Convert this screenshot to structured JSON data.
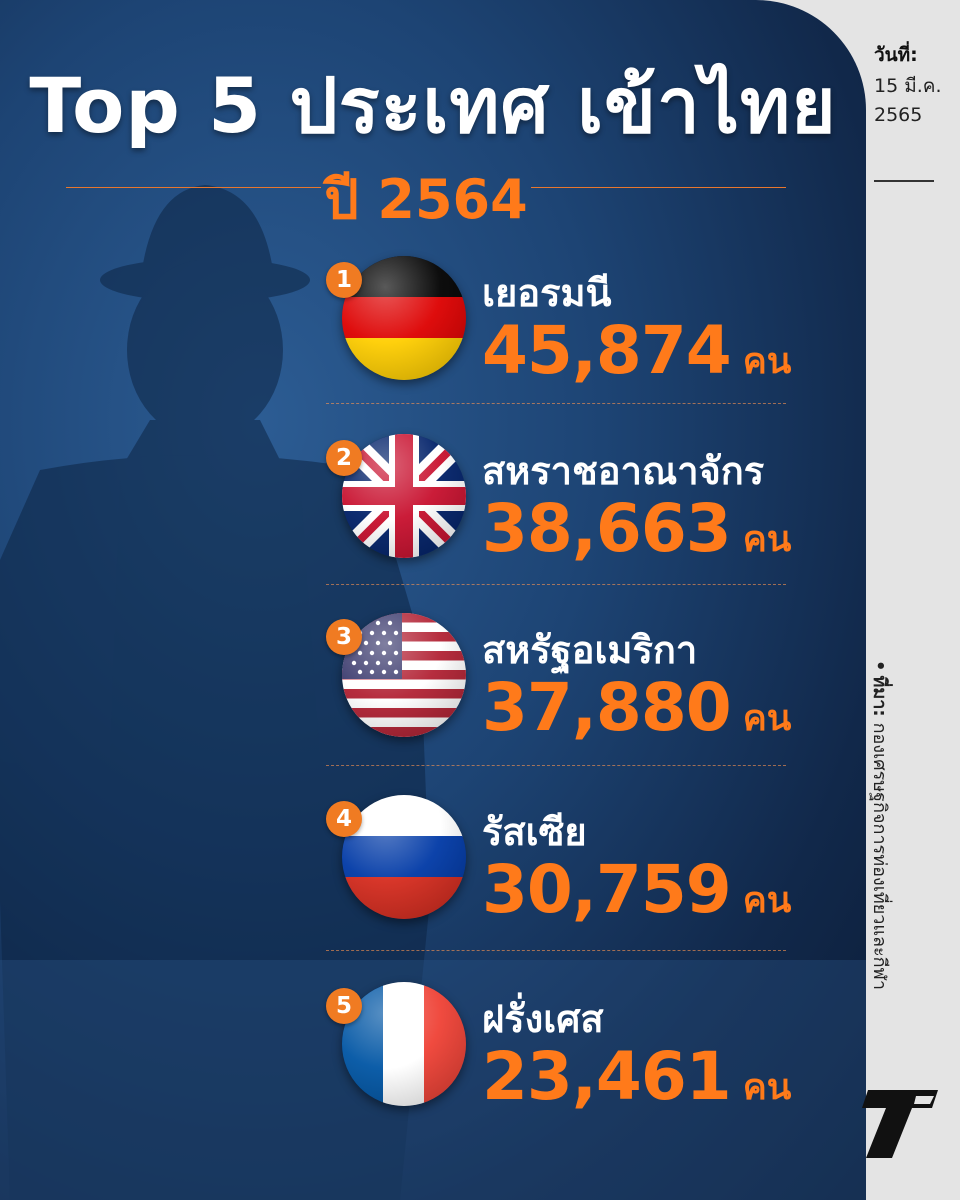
{
  "header": {
    "title": "Top 5 ประเทศ เข้าไทย",
    "subtitle": "ปี 2564"
  },
  "sidebar": {
    "date_label": "วันที่:",
    "date_value": "15 มี.ค. 2565",
    "source_label": "ที่มา:",
    "source_value": "กองเศรษฐกิจการท่องเที่ยวและกีฬา",
    "logo_icon": "thairath-t-logo-icon"
  },
  "unit": "คน",
  "countries": [
    {
      "rank": "1",
      "name": "เยอรมนี",
      "count": "45,874",
      "flag_icon": "germany-flag-icon"
    },
    {
      "rank": "2",
      "name": "สหราชอาณาจักร",
      "count": "38,663",
      "flag_icon": "united-kingdom-flag-icon"
    },
    {
      "rank": "3",
      "name": "สหรัฐอเมริกา",
      "count": "37,880",
      "flag_icon": "usa-flag-icon"
    },
    {
      "rank": "4",
      "name": "รัสเซีย",
      "count": "30,759",
      "flag_icon": "russia-flag-icon"
    },
    {
      "rank": "5",
      "name": "ฝรั่งเศส",
      "count": "23,461",
      "flag_icon": "france-flag-icon"
    }
  ],
  "colors": {
    "accent_orange": "#ff7a1a",
    "background_blue": "#1d4474",
    "side_panel": "#e4e4e4"
  }
}
